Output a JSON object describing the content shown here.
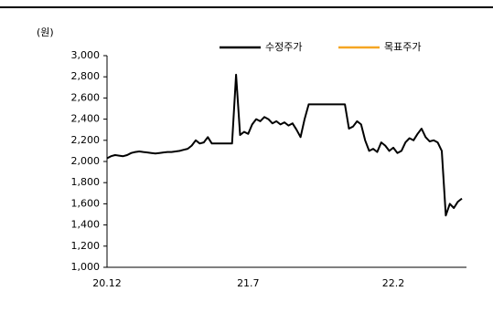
{
  "chart_data": {
    "type": "line",
    "y_unit": "(원)",
    "categories": [
      "20.12",
      null,
      null,
      null,
      null,
      null,
      null,
      null,
      null,
      null,
      null,
      null,
      null,
      null,
      null,
      null,
      null,
      null,
      null,
      null,
      null,
      null,
      null,
      null,
      null,
      null,
      null,
      null,
      null,
      null,
      null,
      null,
      null,
      null,
      null,
      "21.7",
      null,
      null,
      null,
      null,
      null,
      null,
      null,
      null,
      null,
      null,
      null,
      null,
      null,
      null,
      null,
      null,
      null,
      null,
      null,
      null,
      null,
      null,
      null,
      null,
      null,
      null,
      null,
      null,
      null,
      null,
      null,
      null,
      null,
      null,
      null,
      "22.2",
      null,
      null,
      null,
      null,
      null,
      null,
      null,
      null,
      null,
      null,
      null,
      null,
      null,
      null,
      null,
      null,
      null
    ],
    "series": [
      {
        "name": "수정주가",
        "color": "#000000",
        "values": [
          2030,
          2050,
          2060,
          2055,
          2050,
          2060,
          2080,
          2090,
          2095,
          2090,
          2085,
          2080,
          2075,
          2080,
          2085,
          2090,
          2090,
          2095,
          2100,
          2110,
          2120,
          2150,
          2200,
          2170,
          2180,
          2230,
          2170,
          2170,
          2170,
          2170,
          2170,
          2170,
          2820,
          2250,
          2280,
          2260,
          2350,
          2400,
          2380,
          2420,
          2400,
          2360,
          2380,
          2350,
          2370,
          2340,
          2360,
          2300,
          2230,
          2400,
          2540,
          2540,
          2540,
          2540,
          2540,
          2540,
          2540,
          2540,
          2540,
          2540,
          2310,
          2330,
          2380,
          2350,
          2200,
          2100,
          2120,
          2090,
          2180,
          2150,
          2100,
          2130,
          2080,
          2100,
          2180,
          2220,
          2200,
          2260,
          2310,
          2230,
          2190,
          2200,
          2180,
          2100,
          1490,
          1600,
          1560,
          1620,
          1650
        ]
      },
      {
        "name": "목표주가",
        "color": "#f5a623",
        "values": [
          null,
          null,
          null,
          null,
          null,
          null,
          null,
          null,
          null,
          null,
          null,
          null,
          null,
          null,
          null,
          null,
          null,
          null,
          null,
          null,
          null,
          null,
          null,
          null,
          null,
          null,
          null,
          null,
          null,
          null,
          null,
          null,
          null,
          null,
          null,
          null,
          null,
          null,
          null,
          null,
          null,
          null,
          null,
          null,
          null,
          null,
          null,
          null,
          null,
          null,
          null,
          null,
          null,
          null,
          null,
          null,
          null,
          null,
          null,
          null,
          null,
          null,
          null,
          null,
          null,
          null,
          null,
          null,
          null,
          null,
          null,
          null,
          null,
          null,
          null,
          null,
          null,
          null,
          null,
          null,
          null,
          null,
          null,
          null,
          null,
          null,
          null,
          null,
          null
        ]
      }
    ],
    "ylim": [
      1000,
      3000
    ],
    "yticks": [
      {
        "value": 1000,
        "label": "1,000"
      },
      {
        "value": 1200,
        "label": "1,200"
      },
      {
        "value": 1400,
        "label": "1,400"
      },
      {
        "value": 1600,
        "label": "1,600"
      },
      {
        "value": 1800,
        "label": "1,800"
      },
      {
        "value": 2000,
        "label": "2,000"
      },
      {
        "value": 2200,
        "label": "2,200"
      },
      {
        "value": 2400,
        "label": "2,400"
      },
      {
        "value": 2600,
        "label": "2,600"
      },
      {
        "value": 2800,
        "label": "2,800"
      },
      {
        "value": 3000,
        "label": "3,000"
      }
    ],
    "grid": false,
    "legend": "top"
  }
}
